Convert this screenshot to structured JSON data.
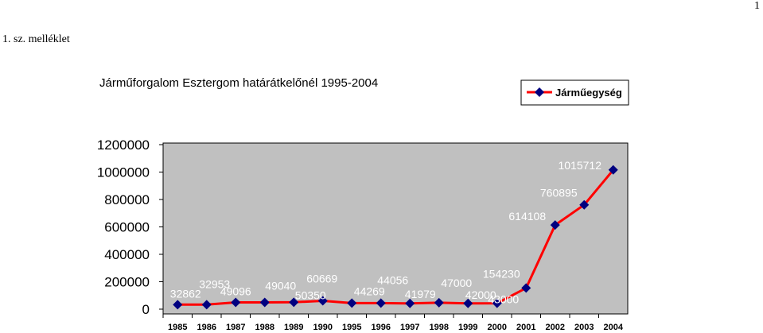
{
  "page": {
    "number": "1",
    "annex": "1. sz. melléklet"
  },
  "chart_data": {
    "type": "line",
    "title": "Járműforgalom Esztergom határátkelőnél 1995-2004",
    "categories": [
      "1985",
      "1986",
      "1987",
      "1988",
      "1989",
      "1990",
      "1995",
      "1996",
      "1997",
      "1998",
      "1999",
      "2000",
      "2001",
      "2002",
      "2003",
      "2004"
    ],
    "series": [
      {
        "name": "Járműegység",
        "values": [
          32862,
          32953,
          49096,
          49040,
          50350,
          60669,
          44269,
          44056,
          41979,
          47000,
          42000,
          43000,
          154230,
          614108,
          760895,
          1015712
        ],
        "labels": [
          "32862",
          "32953",
          "49096",
          "49040",
          "50350",
          "60669",
          "44269",
          "44056",
          "41979",
          "47000",
          "42000",
          "43000",
          "154230",
          "614108",
          "760895",
          "1015712"
        ]
      }
    ],
    "yticks": [
      "0",
      "200000",
      "400000",
      "600000",
      "800000",
      "1000000",
      "1200000"
    ],
    "ylim": [
      0,
      1200000
    ],
    "grid": false,
    "legend": "top-right",
    "colors": {
      "line": "#ff0000",
      "marker": "#000080",
      "plot_bg": "#c0c0c0"
    }
  }
}
